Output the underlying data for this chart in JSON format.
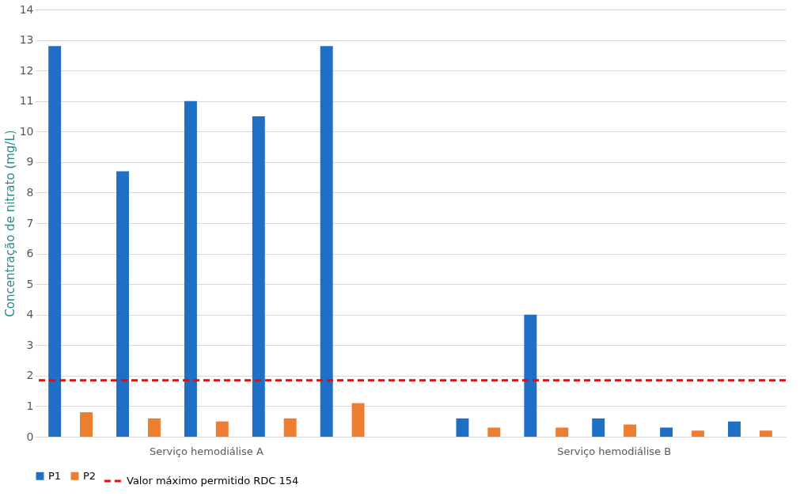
{
  "chart_data": {
    "type": "bar",
    "ylabel": "Concentração de nitrato (mg/L)",
    "categories": [
      null,
      null,
      "Serviço hemodiálise A",
      null,
      null,
      null,
      null,
      null,
      "Serviço hemodiálise B",
      null,
      null
    ],
    "series": [
      {
        "name": "P1",
        "color": "#1f6fc5",
        "values": [
          12.8,
          8.7,
          11,
          10.5,
          12.8,
          null,
          0.6,
          4,
          0.6,
          0.3,
          0.5
        ]
      },
      {
        "name": "P2",
        "color": "#ed7d31",
        "values": [
          0.8,
          0.6,
          0.5,
          0.6,
          1.1,
          null,
          0.3,
          0.3,
          0.4,
          0.2,
          0.2
        ]
      }
    ],
    "ylim": [
      0,
      14
    ],
    "yticks": [
      0,
      1,
      2,
      3,
      4,
      5,
      6,
      7,
      8,
      9,
      10,
      11,
      12,
      13,
      14
    ],
    "ref_lines": [
      {
        "axis": "y",
        "value": 1.85,
        "label": "Valor máximo permitido RDC 154",
        "color": "#ff0000",
        "line_style": "dashed"
      }
    ],
    "grid": "y",
    "legend": "bottom"
  }
}
